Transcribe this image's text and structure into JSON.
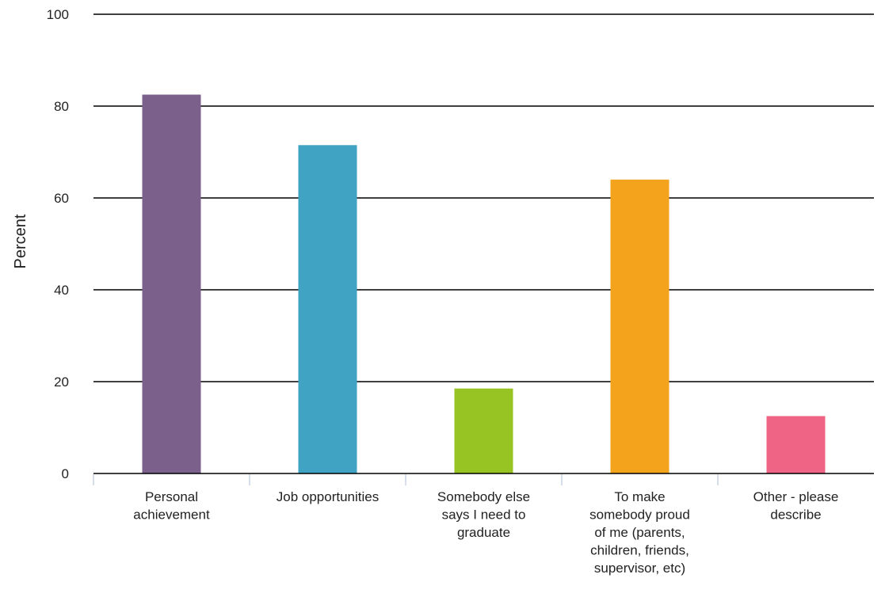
{
  "chart_data": {
    "type": "bar",
    "title": "",
    "xlabel": "",
    "ylabel": "Percent",
    "ylim": [
      0,
      100
    ],
    "yticks": [
      0,
      20,
      40,
      60,
      80,
      100
    ],
    "grid": true,
    "legend": "none",
    "categories": [
      [
        "Personal",
        "achievement"
      ],
      [
        "Job opportunities"
      ],
      [
        "Somebody else",
        "says I need to",
        "graduate"
      ],
      [
        "To make",
        "somebody proud",
        "of me (parents,",
        "children, friends,",
        "supervisor, etc)"
      ],
      [
        "Other - please",
        "describe"
      ]
    ],
    "values": [
      82.5,
      71.5,
      18.5,
      64.0,
      12.5
    ],
    "colors": [
      "#7b608c",
      "#41a3c3",
      "#97c423",
      "#f3a41c",
      "#ef6485"
    ]
  }
}
